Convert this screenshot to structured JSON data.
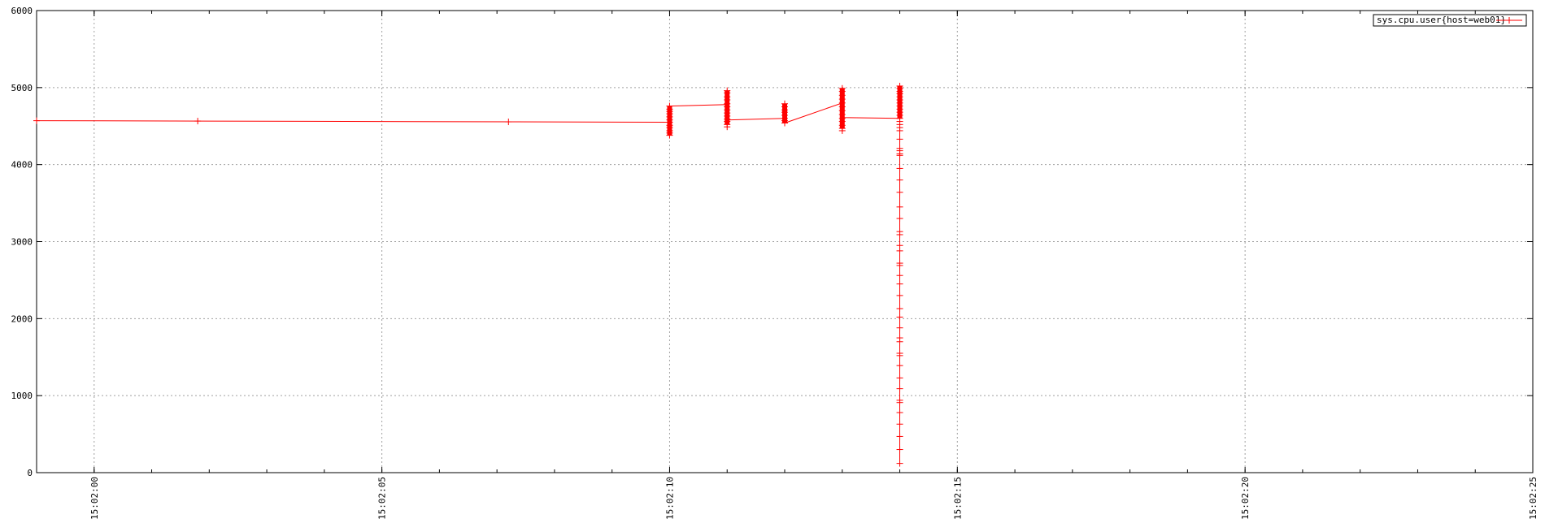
{
  "chart_data": {
    "type": "line",
    "title": "",
    "xlabel": "",
    "ylabel": "",
    "grid": true,
    "legend_position": "top-right",
    "xlim": [
      "15:01:59",
      "15:02:25"
    ],
    "ylim": [
      0,
      6000
    ],
    "x_ticks": [
      "15:02:00",
      "15:02:05",
      "15:02:10",
      "15:02:15",
      "15:02:20",
      "15:02:25"
    ],
    "y_ticks": [
      "0",
      "1000",
      "2000",
      "3000",
      "4000",
      "5000",
      "6000"
    ],
    "series": [
      {
        "name": "sys.cpu.user{host=web01}",
        "color": "#ff0000",
        "marker": "plus",
        "points": [
          {
            "t": "15:01:59",
            "y": 4570
          },
          {
            "t": "15:02:01.8",
            "y": 4565
          },
          {
            "t": "15:02:07.2",
            "y": 4555
          },
          {
            "t": "15:02:10",
            "y": 4550
          }
        ],
        "clusters": [
          {
            "t": "15:02:10",
            "values": [
              4760,
              4720,
              4690,
              4660,
              4620,
              4580,
              4550,
              4510,
              4480,
              4440,
              4410,
              4380
            ]
          },
          {
            "t": "15:02:11",
            "values": [
              4960,
              4930,
              4880,
              4840,
              4790,
              4750,
              4710,
              4670,
              4630,
              4590,
              4560,
              4520,
              4490
            ]
          },
          {
            "t": "15:02:12",
            "values": [
              4790,
              4750,
              4710,
              4680,
              4640,
              4600,
              4570,
              4540
            ]
          },
          {
            "t": "15:02:13",
            "values": [
              4990,
              4950,
              4900,
              4850,
              4800,
              4750,
              4700,
              4650,
              4600,
              4560,
              4510,
              4470,
              4440
            ]
          },
          {
            "t": "15:02:14",
            "values": [
              5020,
              4990,
              4950,
              4920,
              4880,
              4840,
              4800,
              4760,
              4720,
              4680,
              4640,
              4600,
              4560,
              4520,
              4480,
              4440,
              4330,
              4210,
              4180,
              4140,
              4120,
              3950,
              3800,
              3640,
              3450,
              3300,
              3130,
              3090,
              2950,
              2880,
              2720,
              2690,
              2560,
              2450,
              2300,
              2130,
              2020,
              1880,
              1750,
              1700,
              1550,
              1520,
              1390,
              1230,
              1090,
              940,
              910,
              780,
              630,
              470,
              300,
              120
            ]
          }
        ],
        "line_path": [
          {
            "t": "15:01:59",
            "y": 4570
          },
          {
            "t": "15:02:10",
            "y": 4550
          },
          {
            "t": "15:02:10",
            "y": 4760
          },
          {
            "t": "15:02:11",
            "y": 4780
          },
          {
            "t": "15:02:11",
            "y": 4580
          },
          {
            "t": "15:02:12",
            "y": 4600
          },
          {
            "t": "15:02:12",
            "y": 4540
          },
          {
            "t": "15:02:13",
            "y": 4800
          },
          {
            "t": "15:02:13",
            "y": 4610
          },
          {
            "t": "15:02:14",
            "y": 4600
          },
          {
            "t": "15:02:14",
            "y": 120
          }
        ]
      }
    ]
  }
}
